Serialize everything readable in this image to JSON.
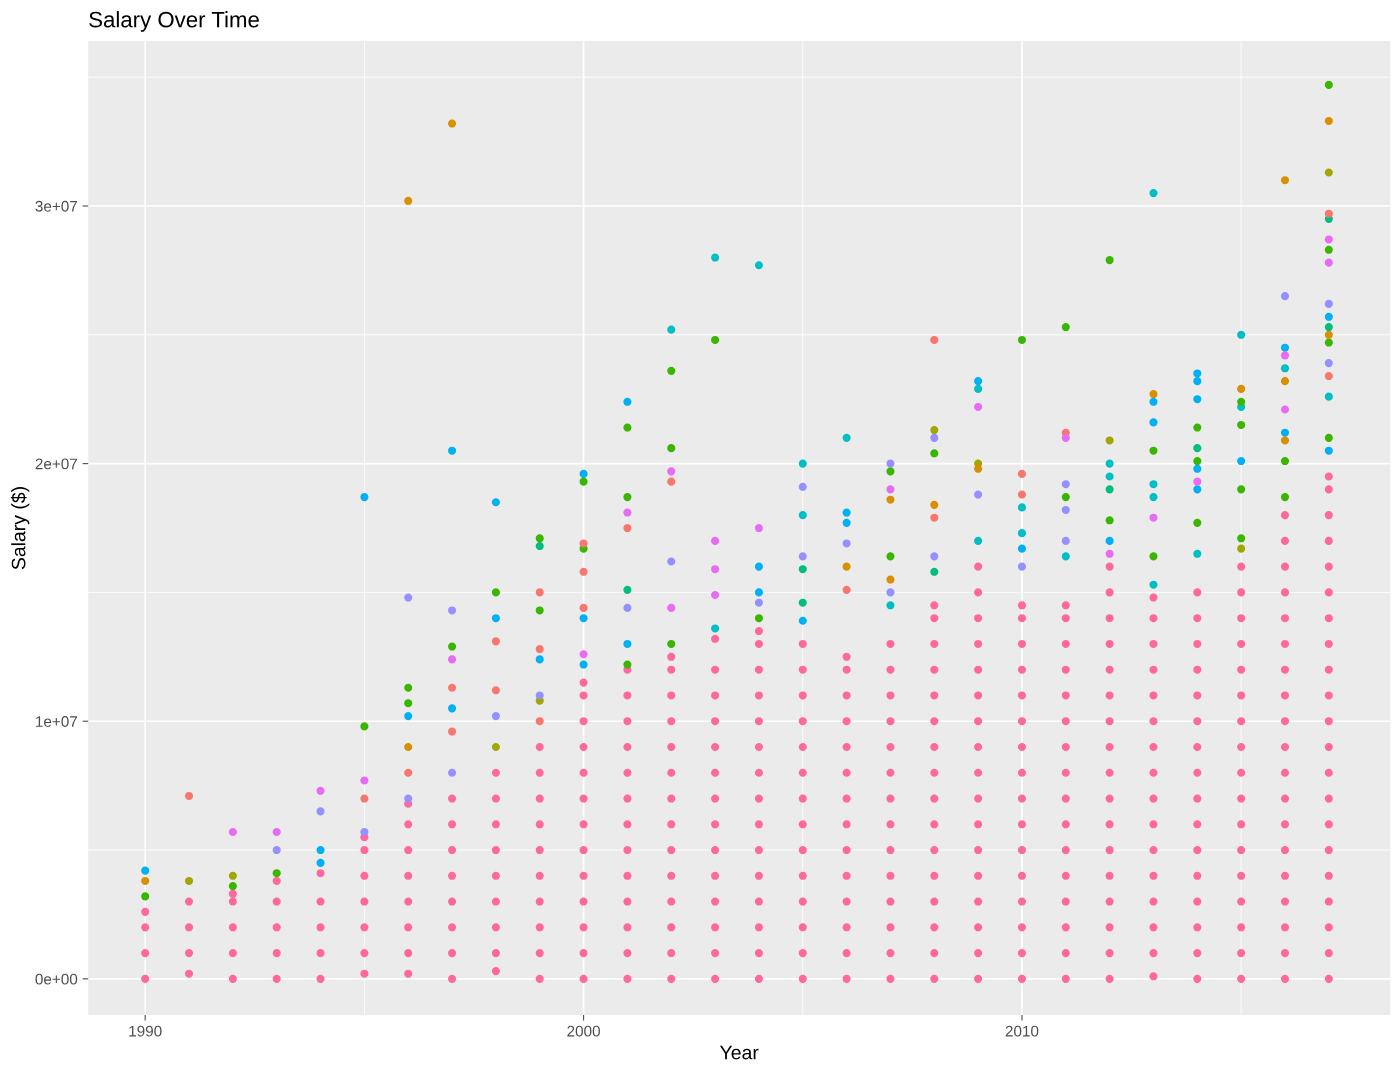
{
  "chart_data": {
    "type": "scatter",
    "title": "Salary Over Time",
    "xlabel": "Year",
    "ylabel": "Salary ($)",
    "xlim": [
      1988.7,
      2018.4
    ],
    "ylim": [
      -1400000,
      36400000
    ],
    "xticks": [
      1990,
      2000,
      2010
    ],
    "yticks": [
      {
        "value": 0,
        "label": "0e+00"
      },
      {
        "value": 10000000,
        "label": "1e+07"
      },
      {
        "value": 20000000,
        "label": "2e+07"
      },
      {
        "value": 30000000,
        "label": "3e+07"
      }
    ],
    "grid": true,
    "marker": "circle",
    "series": [
      {
        "color": "#FF689F",
        "x": [
          1990,
          1990,
          1990,
          1990
        ],
        "values": [
          0,
          1000000.0,
          2000000.0,
          2600000.0
        ]
      },
      {
        "color": "#FF689F",
        "x": [
          1991,
          1991,
          1991,
          1991
        ],
        "values": [
          200000.0,
          1000000.0,
          2000000.0,
          3000000.0
        ]
      },
      {
        "color": "#FF689F",
        "x": [
          1992,
          1992,
          1992,
          1992,
          1992
        ],
        "values": [
          0,
          1000000.0,
          2000000.0,
          3000000.0,
          3300000.0
        ]
      },
      {
        "color": "#FF689F",
        "x": [
          1993,
          1993,
          1993,
          1993,
          1993
        ],
        "values": [
          0,
          1000000.0,
          2000000.0,
          3000000.0,
          3800000.0
        ]
      },
      {
        "color": "#FF689F",
        "x": [
          1994,
          1994,
          1994,
          1994,
          1994
        ],
        "values": [
          0,
          1000000.0,
          2000000.0,
          3000000.0,
          4100000.0
        ]
      },
      {
        "color": "#FF689F",
        "x": [
          1995,
          1995,
          1995,
          1995,
          1995,
          1995,
          1995
        ],
        "values": [
          200000.0,
          1000000.0,
          2000000.0,
          3000000.0,
          4000000.0,
          5000000.0,
          5500000.0
        ]
      },
      {
        "color": "#FF689F",
        "x": [
          1996,
          1996,
          1996,
          1996,
          1996,
          1996,
          1996,
          1996
        ],
        "values": [
          200000.0,
          1000000.0,
          2000000.0,
          3000000.0,
          4000000.0,
          5000000.0,
          6000000.0,
          6800000.0
        ]
      },
      {
        "color": "#FF689F",
        "x": [
          1997,
          1997,
          1997,
          1997,
          1997,
          1997,
          1997,
          1997
        ],
        "values": [
          0,
          1000000.0,
          2000000.0,
          3000000.0,
          4000000.0,
          5000000.0,
          6000000.0,
          7000000.0
        ]
      },
      {
        "color": "#FF689F",
        "x": [
          1998,
          1998,
          1998,
          1998,
          1998,
          1998,
          1998,
          1998,
          1998
        ],
        "values": [
          300000.0,
          1000000.0,
          2000000.0,
          3000000.0,
          4000000.0,
          5000000.0,
          6000000.0,
          7000000.0,
          8000000.0
        ]
      },
      {
        "color": "#FF689F",
        "x": [
          1999,
          1999,
          1999,
          1999,
          1999,
          1999,
          1999,
          1999,
          1999,
          1999
        ],
        "values": [
          0,
          1000000.0,
          2000000.0,
          3000000.0,
          4000000.0,
          5000000.0,
          6000000.0,
          7000000.0,
          8000000.0,
          9000000.0
        ]
      },
      {
        "color": "#FF689F",
        "x": [
          2000,
          2000,
          2000,
          2000,
          2000,
          2000,
          2000,
          2000,
          2000,
          2000,
          2000,
          2000,
          2000
        ],
        "values": [
          0,
          1000000.0,
          2000000.0,
          3000000.0,
          4000000.0,
          5000000.0,
          6000000.0,
          7000000.0,
          8000000.0,
          9000000.0,
          10000000.0,
          11000000.0,
          11500000.0
        ]
      },
      {
        "color": "#FF689F",
        "x": [
          2001,
          2001,
          2001,
          2001,
          2001,
          2001,
          2001,
          2001,
          2001,
          2001,
          2001,
          2001,
          2001
        ],
        "values": [
          0,
          1000000.0,
          2000000.0,
          3000000.0,
          4000000.0,
          5000000.0,
          6000000.0,
          7000000.0,
          8000000.0,
          9000000.0,
          10000000.0,
          11000000.0,
          12000000.0
        ]
      },
      {
        "color": "#FF689F",
        "x": [
          2002,
          2002,
          2002,
          2002,
          2002,
          2002,
          2002,
          2002,
          2002,
          2002,
          2002,
          2002,
          2002,
          2002
        ],
        "values": [
          0,
          1000000.0,
          2000000.0,
          3000000.0,
          4000000.0,
          5000000.0,
          6000000.0,
          7000000.0,
          8000000.0,
          9000000.0,
          10000000.0,
          11000000.0,
          12000000.0,
          12500000.0
        ]
      },
      {
        "color": "#FF689F",
        "x": [
          2003,
          2003,
          2003,
          2003,
          2003,
          2003,
          2003,
          2003,
          2003,
          2003,
          2003,
          2003,
          2003,
          2003
        ],
        "values": [
          0,
          1000000.0,
          2000000.0,
          3000000.0,
          4000000.0,
          5000000.0,
          6000000.0,
          7000000.0,
          8000000.0,
          9000000.0,
          10000000.0,
          11000000.0,
          12000000.0,
          13200000.0
        ]
      },
      {
        "color": "#FF689F",
        "x": [
          2004,
          2004,
          2004,
          2004,
          2004,
          2004,
          2004,
          2004,
          2004,
          2004,
          2004,
          2004,
          2004,
          2004,
          2004
        ],
        "values": [
          0,
          1000000.0,
          2000000.0,
          3000000.0,
          4000000.0,
          5000000.0,
          6000000.0,
          7000000.0,
          8000000.0,
          9000000.0,
          10000000.0,
          11000000.0,
          12000000.0,
          13000000.0,
          13500000.0
        ]
      },
      {
        "color": "#FF689F",
        "x": [
          2005,
          2005,
          2005,
          2005,
          2005,
          2005,
          2005,
          2005,
          2005,
          2005,
          2005,
          2005,
          2005,
          2005
        ],
        "values": [
          0,
          1000000.0,
          2000000.0,
          3000000.0,
          4000000.0,
          5000000.0,
          6000000.0,
          7000000.0,
          8000000.0,
          9000000.0,
          10000000.0,
          11000000.0,
          12000000.0,
          13000000.0
        ]
      },
      {
        "color": "#FF689F",
        "x": [
          2006,
          2006,
          2006,
          2006,
          2006,
          2006,
          2006,
          2006,
          2006,
          2006,
          2006,
          2006,
          2006,
          2006
        ],
        "values": [
          0,
          1000000.0,
          2000000.0,
          3000000.0,
          4000000.0,
          5000000.0,
          6000000.0,
          7000000.0,
          8000000.0,
          9000000.0,
          10000000.0,
          11000000.0,
          12000000.0,
          12500000.0
        ]
      },
      {
        "color": "#FF689F",
        "x": [
          2007,
          2007,
          2007,
          2007,
          2007,
          2007,
          2007,
          2007,
          2007,
          2007,
          2007,
          2007,
          2007,
          2007
        ],
        "values": [
          0,
          1000000.0,
          2000000.0,
          3000000.0,
          4000000.0,
          5000000.0,
          6000000.0,
          7000000.0,
          8000000.0,
          9000000.0,
          10000000.0,
          11000000.0,
          12000000.0,
          13000000.0
        ]
      },
      {
        "color": "#FF689F",
        "x": [
          2008,
          2008,
          2008,
          2008,
          2008,
          2008,
          2008,
          2008,
          2008,
          2008,
          2008,
          2008,
          2008,
          2008,
          2008,
          2008
        ],
        "values": [
          0,
          1000000.0,
          2000000.0,
          3000000.0,
          4000000.0,
          5000000.0,
          6000000.0,
          7000000.0,
          8000000.0,
          9000000.0,
          10000000.0,
          11000000.0,
          12000000.0,
          13000000.0,
          14000000.0,
          14500000.0
        ]
      },
      {
        "color": "#FF689F",
        "x": [
          2009,
          2009,
          2009,
          2009,
          2009,
          2009,
          2009,
          2009,
          2009,
          2009,
          2009,
          2009,
          2009,
          2009,
          2009,
          2009,
          2009
        ],
        "values": [
          0,
          1000000.0,
          2000000.0,
          3000000.0,
          4000000.0,
          5000000.0,
          6000000.0,
          7000000.0,
          8000000.0,
          9000000.0,
          10000000.0,
          11000000.0,
          12000000.0,
          13000000.0,
          14000000.0,
          15000000.0,
          16000000.0
        ]
      },
      {
        "color": "#FF689F",
        "x": [
          2010,
          2010,
          2010,
          2010,
          2010,
          2010,
          2010,
          2010,
          2010,
          2010,
          2010,
          2010,
          2010,
          2010,
          2010,
          2010
        ],
        "values": [
          0,
          1000000.0,
          2000000.0,
          3000000.0,
          4000000.0,
          5000000.0,
          6000000.0,
          7000000.0,
          8000000.0,
          9000000.0,
          10000000.0,
          11000000.0,
          12000000.0,
          13000000.0,
          14000000.0,
          14500000.0
        ]
      },
      {
        "color": "#FF689F",
        "x": [
          2011,
          2011,
          2011,
          2011,
          2011,
          2011,
          2011,
          2011,
          2011,
          2011,
          2011,
          2011,
          2011,
          2011,
          2011,
          2011
        ],
        "values": [
          0,
          1000000.0,
          2000000.0,
          3000000.0,
          4000000.0,
          5000000.0,
          6000000.0,
          7000000.0,
          8000000.0,
          9000000.0,
          10000000.0,
          11000000.0,
          12000000.0,
          13000000.0,
          14000000.0,
          14500000.0
        ]
      },
      {
        "color": "#FF689F",
        "x": [
          2012,
          2012,
          2012,
          2012,
          2012,
          2012,
          2012,
          2012,
          2012,
          2012,
          2012,
          2012,
          2012,
          2012,
          2012,
          2012,
          2012
        ],
        "values": [
          0,
          1000000.0,
          2000000.0,
          3000000.0,
          4000000.0,
          5000000.0,
          6000000.0,
          7000000.0,
          8000000.0,
          9000000.0,
          10000000.0,
          11000000.0,
          12000000.0,
          13000000.0,
          14000000.0,
          15000000.0,
          16000000.0
        ]
      },
      {
        "color": "#FF689F",
        "x": [
          2013,
          2013,
          2013,
          2013,
          2013,
          2013,
          2013,
          2013,
          2013,
          2013,
          2013,
          2013,
          2013,
          2013,
          2013,
          2013
        ],
        "values": [
          100000.0,
          1000000.0,
          2000000.0,
          3000000.0,
          4000000.0,
          5000000.0,
          6000000.0,
          7000000.0,
          8000000.0,
          9000000.0,
          10000000.0,
          11000000.0,
          12000000.0,
          13000000.0,
          14000000.0,
          14800000.0
        ]
      },
      {
        "color": "#FF689F",
        "x": [
          2014,
          2014,
          2014,
          2014,
          2014,
          2014,
          2014,
          2014,
          2014,
          2014,
          2014,
          2014,
          2014,
          2014,
          2014,
          2014
        ],
        "values": [
          0,
          1000000.0,
          2000000.0,
          3000000.0,
          4000000.0,
          5000000.0,
          6000000.0,
          7000000.0,
          8000000.0,
          9000000.0,
          10000000.0,
          11000000.0,
          12000000.0,
          13000000.0,
          14000000.0,
          15000000.0
        ]
      },
      {
        "color": "#FF689F",
        "x": [
          2015,
          2015,
          2015,
          2015,
          2015,
          2015,
          2015,
          2015,
          2015,
          2015,
          2015,
          2015,
          2015,
          2015,
          2015,
          2015,
          2015
        ],
        "values": [
          0,
          1000000.0,
          2000000.0,
          3000000.0,
          4000000.0,
          5000000.0,
          6000000.0,
          7000000.0,
          8000000.0,
          9000000.0,
          10000000.0,
          11000000.0,
          12000000.0,
          13000000.0,
          14000000.0,
          15000000.0,
          16000000.0
        ]
      },
      {
        "color": "#FF689F",
        "x": [
          2016,
          2016,
          2016,
          2016,
          2016,
          2016,
          2016,
          2016,
          2016,
          2016,
          2016,
          2016,
          2016,
          2016,
          2016,
          2016,
          2016,
          2016,
          2016
        ],
        "values": [
          0,
          1000000.0,
          2000000.0,
          3000000.0,
          4000000.0,
          5000000.0,
          6000000.0,
          7000000.0,
          8000000.0,
          9000000.0,
          10000000.0,
          11000000.0,
          12000000.0,
          13000000.0,
          14000000.0,
          15000000.0,
          16000000.0,
          17000000.0,
          18000000.0
        ]
      },
      {
        "color": "#FF689F",
        "x": [
          2017,
          2017,
          2017,
          2017,
          2017,
          2017,
          2017,
          2017,
          2017,
          2017,
          2017,
          2017,
          2017,
          2017,
          2017,
          2017,
          2017,
          2017,
          2017,
          2017,
          2017
        ],
        "values": [
          0,
          1000000.0,
          2000000.0,
          3000000.0,
          4000000.0,
          5000000.0,
          6000000.0,
          7000000.0,
          8000000.0,
          9000000.0,
          10000000.0,
          11000000.0,
          12000000.0,
          13000000.0,
          14000000.0,
          15000000.0,
          16000000.0,
          17000000.0,
          18000000.0,
          19000000.0,
          19500000.0
        ]
      },
      {
        "color": "#00B0F6",
        "x": [
          1990,
          1994,
          1994,
          1995,
          1996,
          1997,
          1997,
          1998,
          1998,
          1999,
          2000,
          2000,
          2000,
          2001,
          2001,
          2004,
          2004,
          2005,
          2006,
          2006,
          2009,
          2010,
          2012,
          2013,
          2013,
          2014,
          2014,
          2014,
          2014,
          2014,
          2015,
          2016,
          2016,
          2017,
          2017
        ],
        "values": [
          4200000.0,
          5000000.0,
          4500000.0,
          18700000.0,
          10200000.0,
          20500000.0,
          10500000.0,
          18500000.0,
          14000000.0,
          12400000.0,
          19600000.0,
          14000000.0,
          12200000.0,
          22400000.0,
          13000000.0,
          16000000.0,
          15000000.0,
          13900000.0,
          18100000.0,
          17700000.0,
          23200000.0,
          16700000.0,
          17000000.0,
          22400000.0,
          21600000.0,
          23500000.0,
          23200000.0,
          22500000.0,
          19800000.0,
          19000000.0,
          20100000.0,
          24500000.0,
          21200000.0,
          25700000.0,
          20500000.0
        ]
      },
      {
        "color": "#00BFC4",
        "x": [
          2002,
          2003,
          2003,
          2004,
          2005,
          2005,
          2006,
          2007,
          2009,
          2009,
          2010,
          2010,
          2011,
          2012,
          2012,
          2013,
          2013,
          2013,
          2013,
          2014,
          2015,
          2015,
          2016,
          2017
        ],
        "values": [
          25200000.0,
          28000000.0,
          13600000.0,
          27700000.0,
          20000000.0,
          18000000.0,
          21000000.0,
          14500000.0,
          22900000.0,
          17000000.0,
          18300000.0,
          17300000.0,
          16400000.0,
          20000000.0,
          19500000.0,
          30500000.0,
          19200000.0,
          18700000.0,
          15300000.0,
          16500000.0,
          25000000.0,
          22200000.0,
          23700000.0,
          22600000.0
        ]
      },
      {
        "color": "#00BF7D",
        "x": [
          1999,
          2001,
          2005,
          2005,
          2008,
          2012,
          2014,
          2017,
          2017
        ],
        "values": [
          16800000.0,
          15100000.0,
          15900000.0,
          14600000.0,
          15800000.0,
          19000000.0,
          20600000.0,
          29500000.0,
          25300000.0
        ]
      },
      {
        "color": "#39B600",
        "x": [
          1990,
          1992,
          1993,
          1995,
          1996,
          1996,
          1997,
          1998,
          1999,
          1999,
          2000,
          2000,
          2001,
          2001,
          2001,
          2002,
          2002,
          2002,
          2003,
          2004,
          2007,
          2007,
          2008,
          2010,
          2011,
          2011,
          2012,
          2012,
          2013,
          2013,
          2014,
          2014,
          2014,
          2015,
          2015,
          2015,
          2015,
          2016,
          2016,
          2017,
          2017,
          2017,
          2017
        ],
        "values": [
          3200000.0,
          3600000.0,
          4100000.0,
          9800000.0,
          11300000.0,
          10700000.0,
          12900000.0,
          15000000.0,
          17100000.0,
          14300000.0,
          19300000.0,
          16700000.0,
          21400000.0,
          18700000.0,
          12200000.0,
          23600000.0,
          20600000.0,
          13000000.0,
          24800000.0,
          14000000.0,
          19700000.0,
          16400000.0,
          20400000.0,
          24800000.0,
          25300000.0,
          18700000.0,
          27900000.0,
          17800000.0,
          20500000.0,
          16400000.0,
          21400000.0,
          20100000.0,
          17700000.0,
          22400000.0,
          21500000.0,
          19000000.0,
          17100000.0,
          20100000.0,
          18700000.0,
          34700000.0,
          28300000.0,
          24700000.0,
          21000000.0
        ]
      },
      {
        "color": "#A3A500",
        "x": [
          1991,
          1992,
          1998,
          1999,
          2008,
          2009,
          2012,
          2015,
          2017
        ],
        "values": [
          3800000.0,
          4000000.0,
          9000000.0,
          10800000.0,
          21300000.0,
          20000000.0,
          20900000.0,
          16700000.0,
          31300000.0
        ]
      },
      {
        "color": "#D89000",
        "x": [
          1990,
          1996,
          1996,
          1997,
          2006,
          2007,
          2007,
          2008,
          2009,
          2013,
          2015,
          2016,
          2016,
          2016,
          2017,
          2017
        ],
        "values": [
          3800000.0,
          30200000.0,
          9000000.0,
          33200000.0,
          16000000.0,
          18600000.0,
          15500000.0,
          18400000.0,
          19800000.0,
          22700000.0,
          22900000.0,
          31000000.0,
          23200000.0,
          20900000.0,
          33300000.0,
          25000000.0
        ]
      },
      {
        "color": "#F8766D",
        "x": [
          1991,
          1995,
          1996,
          1997,
          1997,
          1998,
          1998,
          1999,
          1999,
          1999,
          2000,
          2000,
          2000,
          2001,
          2002,
          2006,
          2008,
          2008,
          2010,
          2010,
          2011,
          2017,
          2017
        ],
        "values": [
          7100000.0,
          7000000.0,
          8000000.0,
          11300000.0,
          9600000.0,
          13100000.0,
          11200000.0,
          15000000.0,
          12800000.0,
          10000000.0,
          16900000.0,
          15800000.0,
          14400000.0,
          17500000.0,
          19300000.0,
          15100000.0,
          24800000.0,
          17900000.0,
          19600000.0,
          18800000.0,
          21200000.0,
          29700000.0,
          23400000.0
        ]
      },
      {
        "color": "#9590FF",
        "x": [
          1993,
          1994,
          1995,
          1996,
          1996,
          1997,
          1997,
          1998,
          1999,
          2001,
          2002,
          2004,
          2005,
          2005,
          2006,
          2007,
          2007,
          2008,
          2008,
          2009,
          2010,
          2011,
          2011,
          2011,
          2016,
          2017,
          2017
        ],
        "values": [
          5000000.0,
          6500000.0,
          5700000.0,
          14800000.0,
          7000000.0,
          14300000.0,
          8000000.0,
          10200000.0,
          11000000.0,
          14400000.0,
          16200000.0,
          14600000.0,
          19100000.0,
          16400000.0,
          16900000.0,
          20000000.0,
          15000000.0,
          21000000.0,
          16400000.0,
          18800000.0,
          16000000.0,
          19200000.0,
          18200000.0,
          17000000.0,
          26500000.0,
          26200000.0,
          23900000.0
        ]
      },
      {
        "color": "#E76BF3",
        "x": [
          1992,
          1993,
          1994,
          1995,
          1997,
          2000,
          2001,
          2002,
          2002,
          2003,
          2003,
          2003,
          2004,
          2007,
          2009,
          2011,
          2012,
          2013,
          2014,
          2016,
          2016,
          2017,
          2017
        ],
        "values": [
          5700000.0,
          5700000.0,
          7300000.0,
          7700000.0,
          12400000.0,
          12600000.0,
          18100000.0,
          19700000.0,
          14400000.0,
          17000000.0,
          15900000.0,
          14900000.0,
          17500000.0,
          19000000.0,
          22200000.0,
          21000000.0,
          16500000.0,
          17900000.0,
          19300000.0,
          24200000.0,
          22100000.0,
          28700000.0,
          27800000.0
        ]
      }
    ]
  }
}
